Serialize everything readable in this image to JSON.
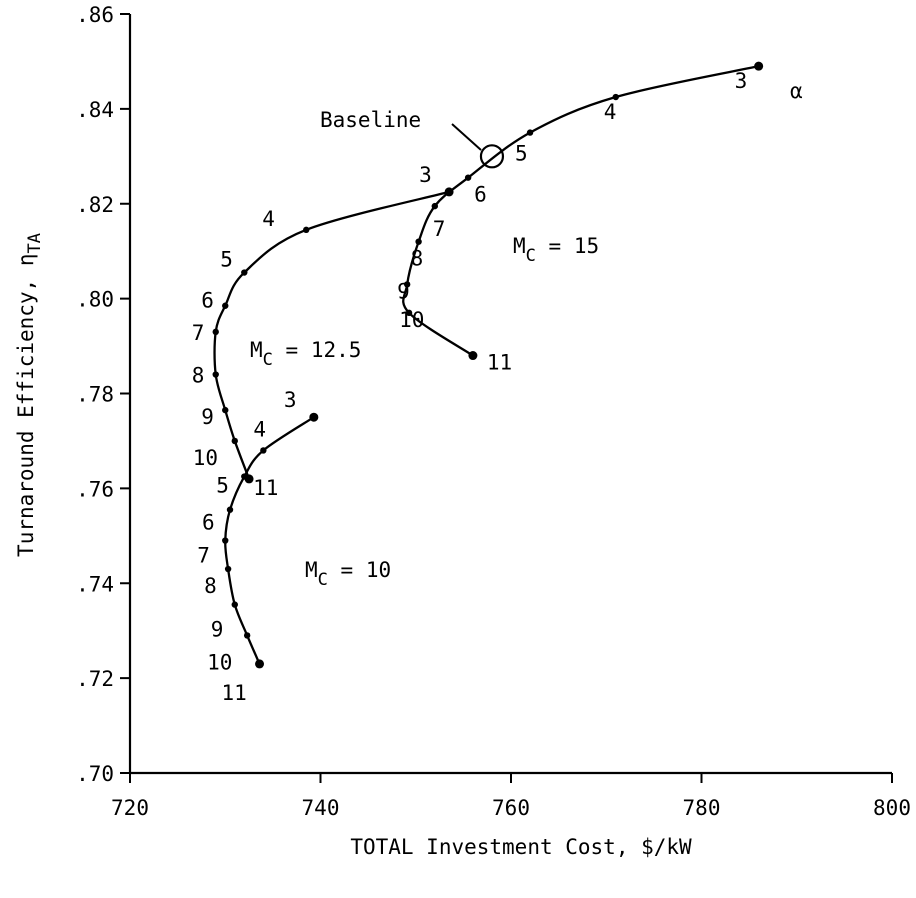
{
  "chart_data": {
    "type": "line",
    "xlabel": "TOTAL Investment Cost, $/kW",
    "ylabel": {
      "main": "Turnaround Efficiency, η",
      "sub": "TA"
    },
    "xlim": [
      720,
      800
    ],
    "ylim": [
      0.7,
      0.86
    ],
    "x_ticks": [
      720,
      740,
      760,
      780,
      800
    ],
    "x_tick_labels": [
      "720",
      "740",
      "760",
      "780",
      "800"
    ],
    "y_ticks": [
      0.7,
      0.72,
      0.74,
      0.76,
      0.78,
      0.8,
      0.82,
      0.84,
      0.86
    ],
    "y_tick_labels": [
      ".70",
      ".72",
      ".74",
      ".76",
      ".78",
      ".80",
      ".82",
      ".84",
      ".86"
    ],
    "grid": false,
    "parameter_symbol": "α",
    "series": [
      {
        "name": "M_C = 15",
        "label": {
          "prefix": "M",
          "sub": "C",
          "suffix": " = 15"
        },
        "points": [
          {
            "alpha": "3",
            "x": 786.0,
            "y": 0.849
          },
          {
            "alpha": "4",
            "x": 771.0,
            "y": 0.8425
          },
          {
            "alpha": "5",
            "x": 762.0,
            "y": 0.835
          },
          {
            "alpha": "6",
            "x": 755.5,
            "y": 0.8255
          },
          {
            "alpha": "7",
            "x": 752.0,
            "y": 0.8195
          },
          {
            "alpha": "8",
            "x": 750.3,
            "y": 0.812
          },
          {
            "alpha": "9",
            "x": 749.1,
            "y": 0.803
          },
          {
            "alpha": "10",
            "x": 749.3,
            "y": 0.797
          },
          {
            "alpha": "11",
            "x": 756.0,
            "y": 0.788
          }
        ]
      },
      {
        "name": "M_C = 12.5",
        "label": {
          "prefix": "M",
          "sub": "C",
          "suffix": " = 12.5"
        },
        "points": [
          {
            "alpha": "3",
            "x": 753.5,
            "y": 0.8225
          },
          {
            "alpha": "4",
            "x": 738.5,
            "y": 0.8145
          },
          {
            "alpha": "5",
            "x": 732.0,
            "y": 0.8055
          },
          {
            "alpha": "6",
            "x": 730.0,
            "y": 0.7985
          },
          {
            "alpha": "7",
            "x": 729.0,
            "y": 0.793
          },
          {
            "alpha": "8",
            "x": 729.0,
            "y": 0.784
          },
          {
            "alpha": "9",
            "x": 730.0,
            "y": 0.7765
          },
          {
            "alpha": "10",
            "x": 731.0,
            "y": 0.77
          },
          {
            "alpha": "11",
            "x": 732.5,
            "y": 0.762
          }
        ]
      },
      {
        "name": "M_C = 10",
        "label": {
          "prefix": "M",
          "sub": "C",
          "suffix": " = 10"
        },
        "points": [
          {
            "alpha": "3",
            "x": 739.3,
            "y": 0.775
          },
          {
            "alpha": "4",
            "x": 734.0,
            "y": 0.768
          },
          {
            "alpha": "5",
            "x": 732.0,
            "y": 0.7625
          },
          {
            "alpha": "6",
            "x": 730.5,
            "y": 0.7555
          },
          {
            "alpha": "7",
            "x": 730.0,
            "y": 0.749
          },
          {
            "alpha": "8",
            "x": 730.3,
            "y": 0.743
          },
          {
            "alpha": "9",
            "x": 731.0,
            "y": 0.7355
          },
          {
            "alpha": "10",
            "x": 732.3,
            "y": 0.729
          },
          {
            "alpha": "11",
            "x": 733.6,
            "y": 0.723
          }
        ]
      }
    ],
    "annotations": {
      "baseline": {
        "text": "Baseline",
        "x": 758.0,
        "y": 0.83
      }
    }
  }
}
